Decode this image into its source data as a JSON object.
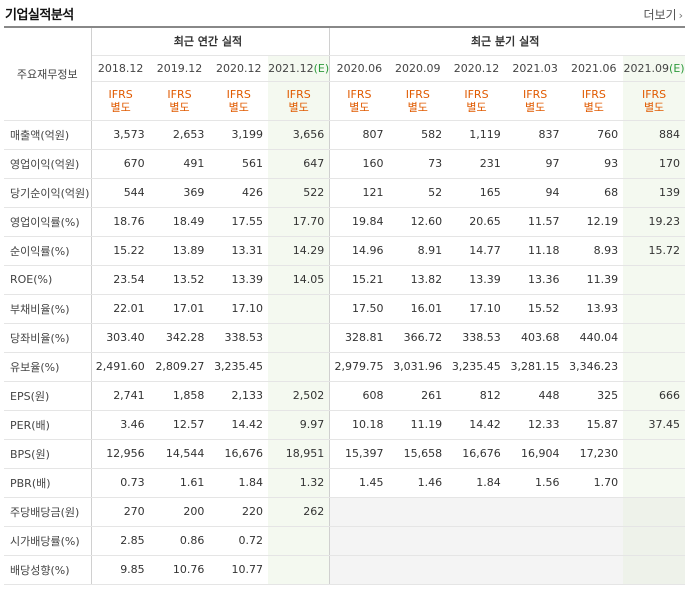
{
  "header": {
    "title": "기업실적분석",
    "more_label": "더보기",
    "more_icon": "chevron-right-icon"
  },
  "table": {
    "row_header_label": "주요재무정보",
    "group_annual": "최근 연간 실적",
    "group_quarter": "최근 분기 실적",
    "annual_periods": [
      "2018.12",
      "2019.12",
      "2020.12",
      "2021.12"
    ],
    "annual_estimate_suffix": "(E)",
    "quarter_periods": [
      "2020.06",
      "2020.09",
      "2020.12",
      "2021.03",
      "2021.06",
      "2021.09"
    ],
    "quarter_estimate_suffix": "(E)",
    "ifrs_top": "IFRS",
    "ifrs_bottom": "별도",
    "rows": [
      {
        "label": "매출액(억원)",
        "values": [
          "3,573",
          "2,653",
          "3,199",
          "3,656",
          "807",
          "582",
          "1,119",
          "837",
          "760",
          "884"
        ]
      },
      {
        "label": "영업이익(억원)",
        "values": [
          "670",
          "491",
          "561",
          "647",
          "160",
          "73",
          "231",
          "97",
          "93",
          "170"
        ]
      },
      {
        "label": "당기순이익(억원)",
        "values": [
          "544",
          "369",
          "426",
          "522",
          "121",
          "52",
          "165",
          "94",
          "68",
          "139"
        ]
      },
      {
        "label": "영업이익률(%)",
        "values": [
          "18.76",
          "18.49",
          "17.55",
          "17.70",
          "19.84",
          "12.60",
          "20.65",
          "11.57",
          "12.19",
          "19.23"
        ]
      },
      {
        "label": "순이익률(%)",
        "values": [
          "15.22",
          "13.89",
          "13.31",
          "14.29",
          "14.96",
          "8.91",
          "14.77",
          "11.18",
          "8.93",
          "15.72"
        ]
      },
      {
        "label": "ROE(%)",
        "values": [
          "23.54",
          "13.52",
          "13.39",
          "14.05",
          "15.21",
          "13.82",
          "13.39",
          "13.36",
          "11.39",
          ""
        ]
      },
      {
        "label": "부채비율(%)",
        "values": [
          "22.01",
          "17.01",
          "17.10",
          "",
          "17.50",
          "16.01",
          "17.10",
          "15.52",
          "13.93",
          ""
        ]
      },
      {
        "label": "당좌비율(%)",
        "values": [
          "303.40",
          "342.28",
          "338.53",
          "",
          "328.81",
          "366.72",
          "338.53",
          "403.68",
          "440.04",
          ""
        ]
      },
      {
        "label": "유보율(%)",
        "values": [
          "2,491.60",
          "2,809.27",
          "3,235.45",
          "",
          "2,979.75",
          "3,031.96",
          "3,235.45",
          "3,281.15",
          "3,346.23",
          ""
        ]
      },
      {
        "label": "EPS(원)",
        "values": [
          "2,741",
          "1,858",
          "2,133",
          "2,502",
          "608",
          "261",
          "812",
          "448",
          "325",
          "666"
        ]
      },
      {
        "label": "PER(배)",
        "values": [
          "3.46",
          "12.57",
          "14.42",
          "9.97",
          "10.18",
          "11.19",
          "14.42",
          "12.33",
          "15.87",
          "37.45"
        ]
      },
      {
        "label": "BPS(원)",
        "values": [
          "12,956",
          "14,544",
          "16,676",
          "18,951",
          "15,397",
          "15,658",
          "16,676",
          "16,904",
          "17,230",
          ""
        ]
      },
      {
        "label": "PBR(배)",
        "values": [
          "0.73",
          "1.61",
          "1.84",
          "1.32",
          "1.45",
          "1.46",
          "1.84",
          "1.56",
          "1.70",
          ""
        ]
      },
      {
        "label": "주당배당금(원)",
        "values": [
          "270",
          "200",
          "220",
          "262",
          "",
          "",
          "",
          "",
          "",
          ""
        ]
      },
      {
        "label": "시가배당률(%)",
        "values": [
          "2.85",
          "0.86",
          "0.72",
          "",
          "",
          "",
          "",
          "",
          "",
          ""
        ]
      },
      {
        "label": "배당성향(%)",
        "values": [
          "9.85",
          "10.76",
          "10.77",
          "",
          "",
          "",
          "",
          "",
          "",
          ""
        ]
      }
    ]
  }
}
